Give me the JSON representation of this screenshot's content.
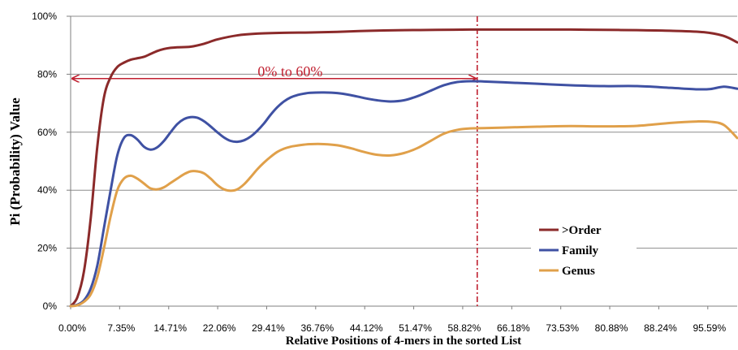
{
  "chart_data": {
    "type": "line",
    "xlabel": "Relative Positions of 4-mers in the sorted List",
    "ylabel": "Pi (Probability) Value",
    "xlim": [
      0,
      100
    ],
    "ylim": [
      0,
      100
    ],
    "x_tick_labels": [
      "0.00%",
      "7.35%",
      "14.71%",
      "22.06%",
      "29.41%",
      "36.76%",
      "44.12%",
      "51.47%",
      "58.82%",
      "66.18%",
      "73.53%",
      "80.88%",
      "88.24%",
      "95.59%"
    ],
    "x_tick_values": [
      0,
      7.35,
      14.71,
      22.06,
      29.41,
      36.76,
      44.12,
      51.47,
      58.82,
      66.18,
      73.53,
      80.88,
      88.24,
      95.59
    ],
    "y_tick_labels": [
      "0%",
      "20%",
      "40%",
      "60%",
      "80%",
      "100%"
    ],
    "y_tick_values": [
      0,
      20,
      40,
      60,
      80,
      100
    ],
    "grid": "horizontal",
    "legend_position": "bottom-right",
    "series": [
      {
        "name": ">Order",
        "color": "#8B2A2A",
        "x": [
          0,
          1,
          2,
          3,
          4,
          5,
          6,
          7,
          8,
          9,
          10,
          11,
          12,
          13,
          14,
          15,
          16,
          18,
          20,
          22,
          25,
          28,
          32,
          36,
          40,
          45,
          50,
          55,
          60,
          65,
          70,
          75,
          80,
          85,
          90,
          95,
          98,
          100
        ],
        "values": [
          0,
          3,
          12,
          30,
          55,
          72,
          79,
          82.5,
          84,
          85,
          85.5,
          86,
          87,
          88,
          88.7,
          89.1,
          89.3,
          89.5,
          90.5,
          92,
          93.4,
          94,
          94.3,
          94.4,
          94.6,
          95,
          95.2,
          95.3,
          95.4,
          95.4,
          95.4,
          95.4,
          95.3,
          95.2,
          95,
          94.5,
          93.2,
          91
        ]
      },
      {
        "name": "Family",
        "color": "#3F51A3",
        "x": [
          0,
          1,
          2,
          3,
          4,
          5,
          6,
          7,
          8,
          9,
          10,
          11,
          12,
          13,
          14,
          15,
          16,
          17,
          18,
          19,
          20,
          21,
          22,
          23,
          24,
          25,
          26,
          27,
          28,
          29,
          30,
          31,
          32,
          33,
          34,
          35,
          36,
          38,
          40,
          42,
          44,
          46,
          48,
          50,
          52,
          54,
          56,
          58,
          60,
          62,
          65,
          70,
          75,
          80,
          85,
          90,
          94,
          96,
          98,
          100
        ],
        "values": [
          0,
          0.5,
          2,
          6,
          14,
          27,
          40,
          52,
          58,
          59,
          57.5,
          55,
          54,
          54.8,
          57,
          60,
          62.8,
          64.5,
          65.2,
          65,
          63.8,
          62,
          60,
          58.2,
          57,
          56.7,
          57.2,
          58.5,
          60.5,
          63,
          66,
          68.6,
          70.6,
          72,
          72.8,
          73.3,
          73.6,
          73.7,
          73.5,
          72.8,
          71.8,
          71,
          70.6,
          71,
          72.4,
          74.3,
          76.2,
          77.3,
          77.6,
          77.5,
          77.2,
          76.7,
          76.2,
          75.9,
          75.9,
          75.3,
          74.8,
          74.9,
          75.7,
          75
        ]
      },
      {
        "name": "Genus",
        "color": "#E0A04A",
        "x": [
          0,
          1,
          2,
          3,
          4,
          5,
          6,
          7,
          8,
          9,
          10,
          11,
          12,
          13,
          14,
          15,
          16,
          17,
          18,
          19,
          20,
          21,
          22,
          23,
          24,
          25,
          26,
          27,
          28,
          29,
          30,
          31,
          32,
          33,
          34,
          35,
          36,
          38,
          40,
          42,
          44,
          46,
          48,
          50,
          52,
          54,
          56,
          58,
          60,
          62,
          65,
          70,
          75,
          80,
          85,
          90,
          94,
          96,
          98,
          100
        ],
        "values": [
          0,
          0.3,
          1.5,
          4,
          10,
          20,
          31,
          40,
          44,
          45,
          44,
          42.3,
          40.6,
          40.3,
          41,
          42.5,
          44,
          45.5,
          46.5,
          46.5,
          45.8,
          44,
          41.8,
          40.3,
          39.8,
          40.3,
          42,
          44.5,
          47.2,
          49.5,
          51.5,
          53.2,
          54.3,
          55,
          55.4,
          55.7,
          55.9,
          55.9,
          55.5,
          54.5,
          53.2,
          52.2,
          52,
          52.8,
          54.5,
          57,
          59.5,
          60.8,
          61.3,
          61.4,
          61.6,
          61.9,
          62.1,
          62,
          62.2,
          63.2,
          63.7,
          63.6,
          62.5,
          58
        ]
      }
    ],
    "annotation": {
      "text": "0% to 60%",
      "x_start": 0,
      "x_end": 60,
      "y": 78.5,
      "vline_x": 61,
      "color": "#C02030"
    }
  }
}
